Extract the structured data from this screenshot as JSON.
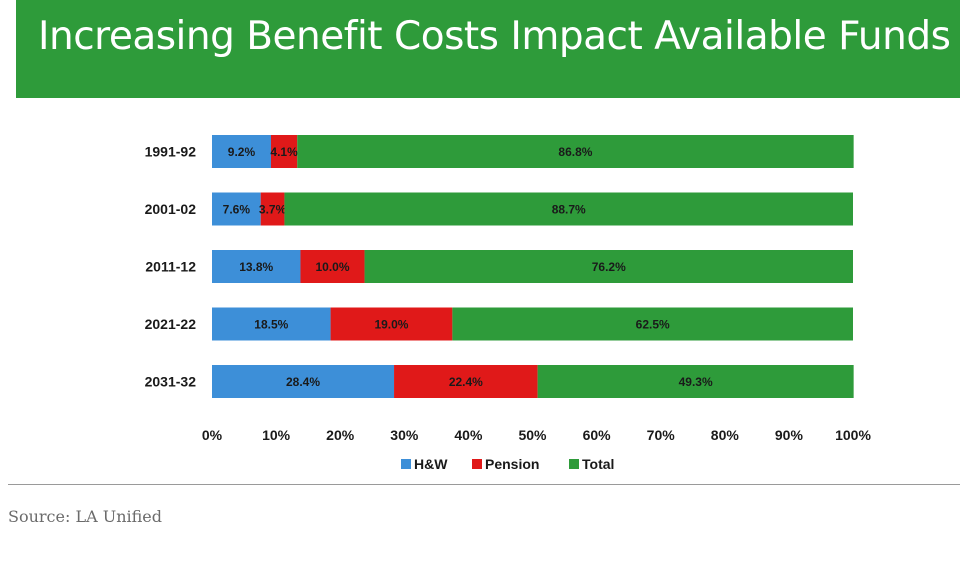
{
  "title": "Increasing Benefit Costs Impact Available Funds",
  "source": "Source: LA Unified",
  "colors": {
    "title_bg": "#2e9b3a",
    "hw": "#3d8fd8",
    "pension": "#e01919",
    "total": "#2e9b3a"
  },
  "chart_data": {
    "type": "bar",
    "orientation": "horizontal",
    "stacked": true,
    "title": "Increasing Benefit Costs Impact Available Funds",
    "categories": [
      "1991-92",
      "2001-02",
      "2011-12",
      "2021-22",
      "2031-32"
    ],
    "series": [
      {
        "name": "H&W",
        "values": [
          9.2,
          7.6,
          13.8,
          18.5,
          28.4
        ],
        "labels": [
          "9.2%",
          "7.6%",
          "13.8%",
          "18.5%",
          "28.4%"
        ]
      },
      {
        "name": "Pension",
        "values": [
          4.1,
          3.7,
          10.0,
          19.0,
          22.4
        ],
        "labels": [
          "4.1%",
          "3.7%",
          "10.0%",
          "19.0%",
          "22.4%"
        ]
      },
      {
        "name": "Total",
        "values": [
          86.8,
          88.7,
          76.2,
          62.5,
          49.3
        ],
        "labels": [
          "86.8%",
          "88.7%",
          "76.2%",
          "62.5%",
          "49.3%"
        ]
      }
    ],
    "xlim": [
      0,
      100
    ],
    "xticks": [
      "0%",
      "10%",
      "20%",
      "30%",
      "40%",
      "50%",
      "60%",
      "70%",
      "80%",
      "90%",
      "100%"
    ],
    "legend": "bottom",
    "grid": false
  }
}
